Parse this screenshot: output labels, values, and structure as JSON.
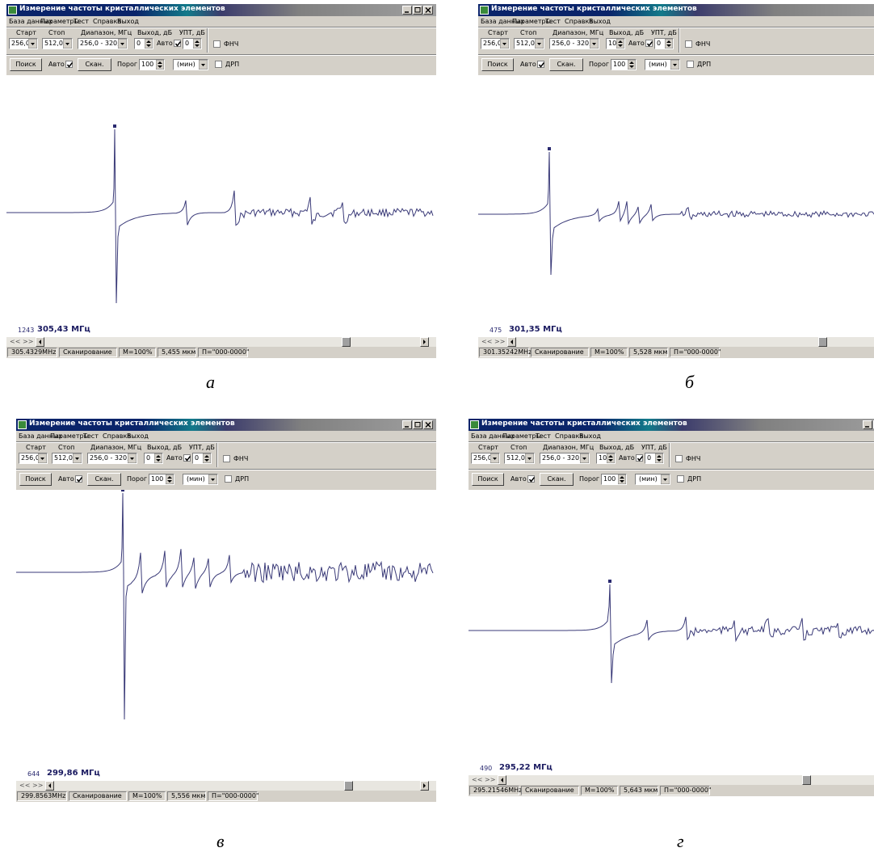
{
  "panels": [
    {
      "caption": "а",
      "window": {
        "title": "Измерение частоты кристаллических элементов",
        "menu": [
          "База данных",
          "Параметры",
          "Тест",
          "Справка",
          "Выход"
        ],
        "labels": [
          "Старт",
          "Стоп",
          "Диапазон, МГц",
          "Выход, дБ",
          "УПТ, дБ"
        ],
        "start": "256,0",
        "stop": "512,0",
        "range": "256,0 - 320,0",
        "output_db": "0",
        "auto_output": "Авто",
        "upt_db": "0",
        "lpf": "ФНЧ",
        "search": "Поиск",
        "auto_search": "Авто",
        "scan": "Скан.",
        "threshold_label": "Порог",
        "threshold": "100",
        "mode": "(мин)",
        "drp": "ДРП",
        "count": "1243",
        "frequency": "305,43 МГц",
        "nav": [
          "<<",
          ">>"
        ],
        "status": [
          "305.4329MHz",
          "Сканирование",
          "M=100%",
          "5,455 мкм",
          "П=\"000-0000\""
        ]
      }
    },
    {
      "caption": "б",
      "window": {
        "title": "Измерение частоты кристаллических элементов",
        "menu": [
          "База данных",
          "Параметры",
          "Тест",
          "Справка",
          "Выход"
        ],
        "labels": [
          "Старт",
          "Стоп",
          "Диапазон, МГц",
          "Выход, дБ",
          "УПТ, дБ"
        ],
        "start": "256,0",
        "stop": "512,0",
        "range": "256,0 - 320,0",
        "output_db": "10",
        "auto_output": "Авто",
        "upt_db": "0",
        "lpf": "ФНЧ",
        "search": "Поиск",
        "auto_search": "Авто",
        "scan": "Скан.",
        "threshold_label": "Порог",
        "threshold": "100",
        "mode": "(мин)",
        "drp": "ДРП",
        "count": "475",
        "frequency": "301,35 МГц",
        "nav": [
          "<<",
          ">>"
        ],
        "status": [
          "301.35242MHz",
          "Сканирование",
          "M=100%",
          "5,528 мкм",
          "П=\"000-0000\""
        ]
      }
    },
    {
      "caption": "в",
      "window": {
        "title": "Измерение частоты кристаллических элементов",
        "menu": [
          "База данных",
          "Параметры",
          "Тест",
          "Справка",
          "Выход"
        ],
        "labels": [
          "Старт",
          "Стоп",
          "Диапазон, МГц",
          "Выход, дБ",
          "УПТ, дБ"
        ],
        "start": "256,0",
        "stop": "512,0",
        "range": "256,0 - 320,0",
        "output_db": "0",
        "auto_output": "Авто",
        "upt_db": "0",
        "lpf": "ФНЧ",
        "search": "Поиск",
        "auto_search": "Авто",
        "scan": "Скан.",
        "threshold_label": "Порог",
        "threshold": "100",
        "mode": "(мин)",
        "drp": "ДРП",
        "count": "644",
        "frequency": "299,86 МГц",
        "nav": [
          "<<",
          ">>"
        ],
        "status": [
          "299.8563MHz",
          "Сканирование",
          "M=100%",
          "5,556 мкм",
          "П=\"000-0000\""
        ]
      }
    },
    {
      "caption": "г",
      "window": {
        "title": "Измерение частоты кристаллических элементов",
        "menu": [
          "База данных",
          "Параметры",
          "Тест",
          "Справка",
          "Выход"
        ],
        "labels": [
          "Старт",
          "Стоп",
          "Диапазон, МГц",
          "Выход, дБ",
          "УПТ, дБ"
        ],
        "start": "256,0",
        "stop": "512,0",
        "range": "256,0 - 320,0",
        "output_db": "10",
        "auto_output": "Авто",
        "upt_db": "0",
        "lpf": "ФНЧ",
        "search": "Поиск",
        "auto_search": "Авто",
        "scan": "Скан.",
        "threshold_label": "Порог",
        "threshold": "100",
        "mode": "(мин)",
        "drp": "ДРП",
        "count": "490",
        "frequency": "295,22 МГц",
        "nav": [
          "<<",
          ">>"
        ],
        "status": [
          "295.21546MHz",
          "Сканирование",
          "M=100%",
          "5,643 мкм",
          "П=\"000-0000\""
        ]
      }
    }
  ]
}
